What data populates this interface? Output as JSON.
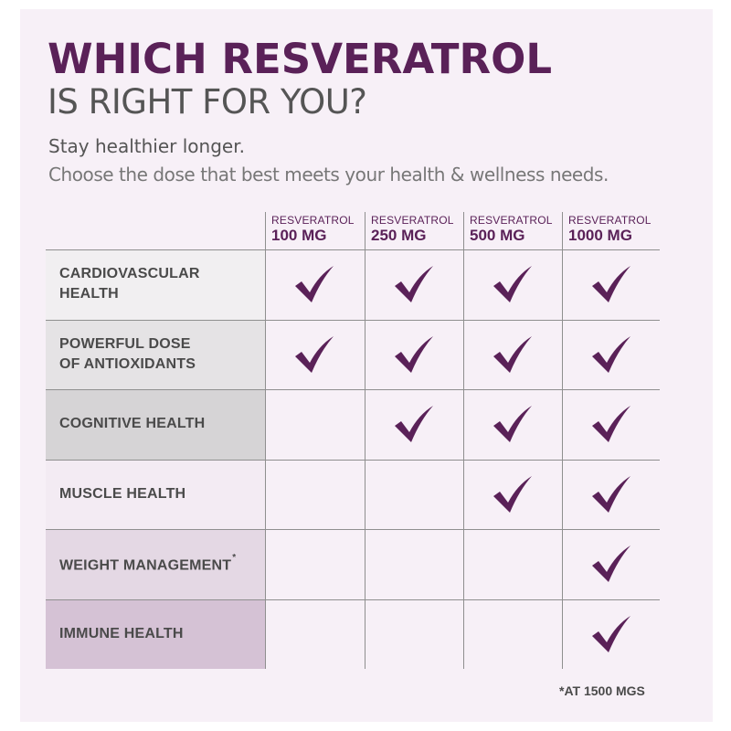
{
  "title_line1": "WHICH RESVERATROL",
  "title_line2": "IS RIGHT FOR YOU?",
  "subtitle_line1": "Stay healthier longer.",
  "subtitle_line2": "Choose the dose that best meets your health & wellness needs.",
  "columns": [
    {
      "name": "RESVERATROL",
      "dose": "100 MG"
    },
    {
      "name": "RESVERATROL",
      "dose": "250 MG"
    },
    {
      "name": "RESVERATROL",
      "dose": "500 MG"
    },
    {
      "name": "RESVERATROL",
      "dose": "1000 MG"
    }
  ],
  "rows": [
    {
      "line1": "CARDIOVASCULAR",
      "line2": "HEALTH",
      "bg": "#f1eff1",
      "checks": [
        true,
        true,
        true,
        true
      ]
    },
    {
      "line1": "POWERFUL DOSE",
      "line2": "OF ANTIOXIDANTS",
      "bg": "#e5e3e5",
      "checks": [
        true,
        true,
        true,
        true
      ]
    },
    {
      "line1": "COGNITIVE HEALTH",
      "line2": "",
      "bg": "#d6d4d6",
      "checks": [
        false,
        true,
        true,
        true
      ]
    },
    {
      "line1": "MUSCLE HEALTH",
      "line2": "",
      "bg": "#f3ebf3",
      "checks": [
        false,
        false,
        true,
        true
      ]
    },
    {
      "line1": "WEIGHT MANAGEMENT",
      "line2": "",
      "sup": "*",
      "bg": "#e4d8e4",
      "checks": [
        false,
        false,
        false,
        true
      ]
    },
    {
      "line1": "IMMUNE HEALTH",
      "line2": "",
      "bg": "#d5c2d5",
      "checks": [
        false,
        false,
        false,
        true
      ]
    }
  ],
  "footnote": "*AT 1500 MGS",
  "colors": {
    "brand_purple": "#5a2158",
    "check": "#5a2158"
  },
  "icons": {
    "check": "checkmark-icon"
  }
}
